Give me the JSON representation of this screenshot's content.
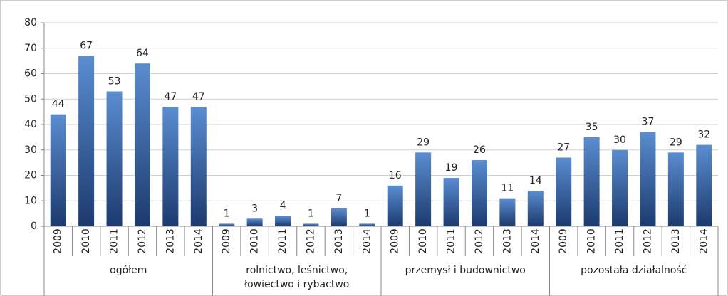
{
  "chart_data": {
    "type": "bar",
    "groups": [
      {
        "name": "ogółem",
        "categories": [
          "2009",
          "2010",
          "2011",
          "2012",
          "2013",
          "2014"
        ],
        "values": [
          44,
          67,
          53,
          64,
          47,
          47
        ]
      },
      {
        "name": "rolnictwo, leśnictwo, łowiectwo i rybactwo",
        "categories": [
          "2009",
          "2010",
          "2011",
          "2012",
          "2013",
          "2014"
        ],
        "values": [
          1,
          3,
          4,
          1,
          7,
          1
        ]
      },
      {
        "name": "przemysł i budownictwo",
        "categories": [
          "2009",
          "2010",
          "2011",
          "2012",
          "2013",
          "2014"
        ],
        "values": [
          16,
          29,
          19,
          26,
          11,
          14
        ]
      },
      {
        "name": "pozostała działalność",
        "categories": [
          "2009",
          "2010",
          "2011",
          "2012",
          "2013",
          "2014"
        ],
        "values": [
          27,
          35,
          30,
          37,
          29,
          32
        ]
      }
    ],
    "color": "#5a8dd0",
    "ylim": [
      0,
      80
    ],
    "yticks": [
      0,
      10,
      20,
      30,
      40,
      50,
      60,
      70,
      80
    ],
    "grid": true
  }
}
